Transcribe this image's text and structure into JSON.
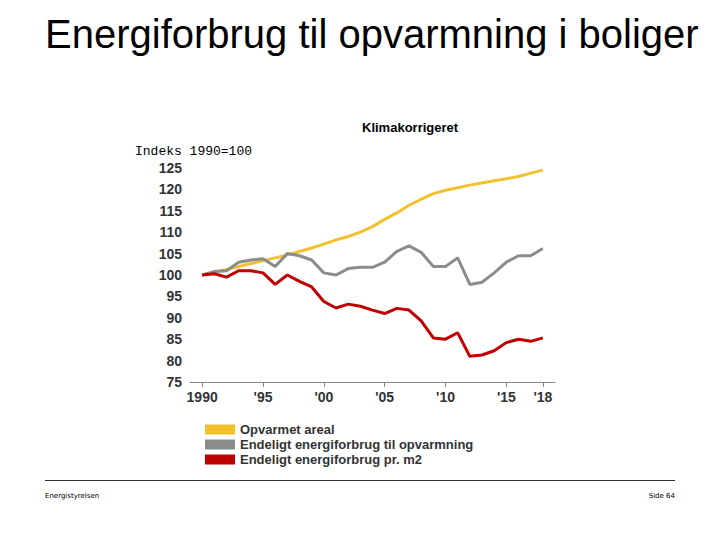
{
  "chart_data": {
    "type": "line",
    "title": "Energiforbrug til opvarmning i boliger",
    "subtitle": "Klimakorrigeret",
    "y_label": "Indeks 1990=100",
    "x": [
      1990,
      1991,
      1992,
      1993,
      1994,
      1995,
      1996,
      1997,
      1998,
      1999,
      2000,
      2001,
      2002,
      2003,
      2004,
      2005,
      2006,
      2007,
      2008,
      2009,
      2010,
      2011,
      2012,
      2013,
      2014,
      2015,
      2016,
      2017,
      2018
    ],
    "series": [
      {
        "name": "Opvarmet areal",
        "color": "#f2c12e",
        "values": [
          100,
          100.7,
          101.3,
          102,
          102.7,
          103.3,
          104,
          104.7,
          105.5,
          106.3,
          107.2,
          108.2,
          109,
          110,
          111.3,
          113,
          114.5,
          116.3,
          117.7,
          119,
          119.8,
          120.4,
          121,
          121.5,
          122,
          122.5,
          123,
          123.8,
          124.5
        ]
      },
      {
        "name": "Endeligt energiforbrug til opvarmning",
        "color": "#8c8c8c",
        "values": [
          100,
          100.8,
          101,
          103,
          103.5,
          103.8,
          102,
          105,
          104.5,
          103.5,
          100.5,
          100,
          101.5,
          101.8,
          101.8,
          103,
          105.5,
          106.8,
          105.3,
          102,
          102,
          104,
          97.8,
          98.3,
          100.5,
          103,
          104.5,
          104.5,
          106.2
        ]
      },
      {
        "name": "Endeligt energiforbrug pr. m2",
        "color": "#c00000",
        "values": [
          100,
          100.3,
          99.5,
          101,
          101,
          100.5,
          97.8,
          100,
          98.5,
          97.2,
          93.8,
          92.3,
          93.2,
          92.7,
          91.8,
          91,
          92.2,
          91.8,
          89.3,
          85.3,
          85,
          86.5,
          81,
          81.3,
          82.3,
          84.2,
          85,
          84.5,
          85.3
        ]
      }
    ],
    "xlim": [
      1989,
      2019
    ],
    "xticks": [
      1990,
      {
        "value": 1995,
        "label": "'95"
      },
      {
        "value": 2000,
        "label": "'00"
      },
      {
        "value": 2005,
        "label": "'05"
      },
      {
        "value": 2010,
        "label": "'10"
      },
      {
        "value": 2015,
        "label": "'15"
      },
      {
        "value": 2018,
        "label": "'18"
      }
    ],
    "ylim": [
      75,
      125
    ],
    "yticks": [
      75,
      80,
      85,
      90,
      95,
      100,
      105,
      110,
      115,
      120,
      125
    ],
    "grid": false,
    "legend": "bottom"
  },
  "page": {
    "footer_left": "Energistyrelsen",
    "footer_right": "Side 64"
  }
}
